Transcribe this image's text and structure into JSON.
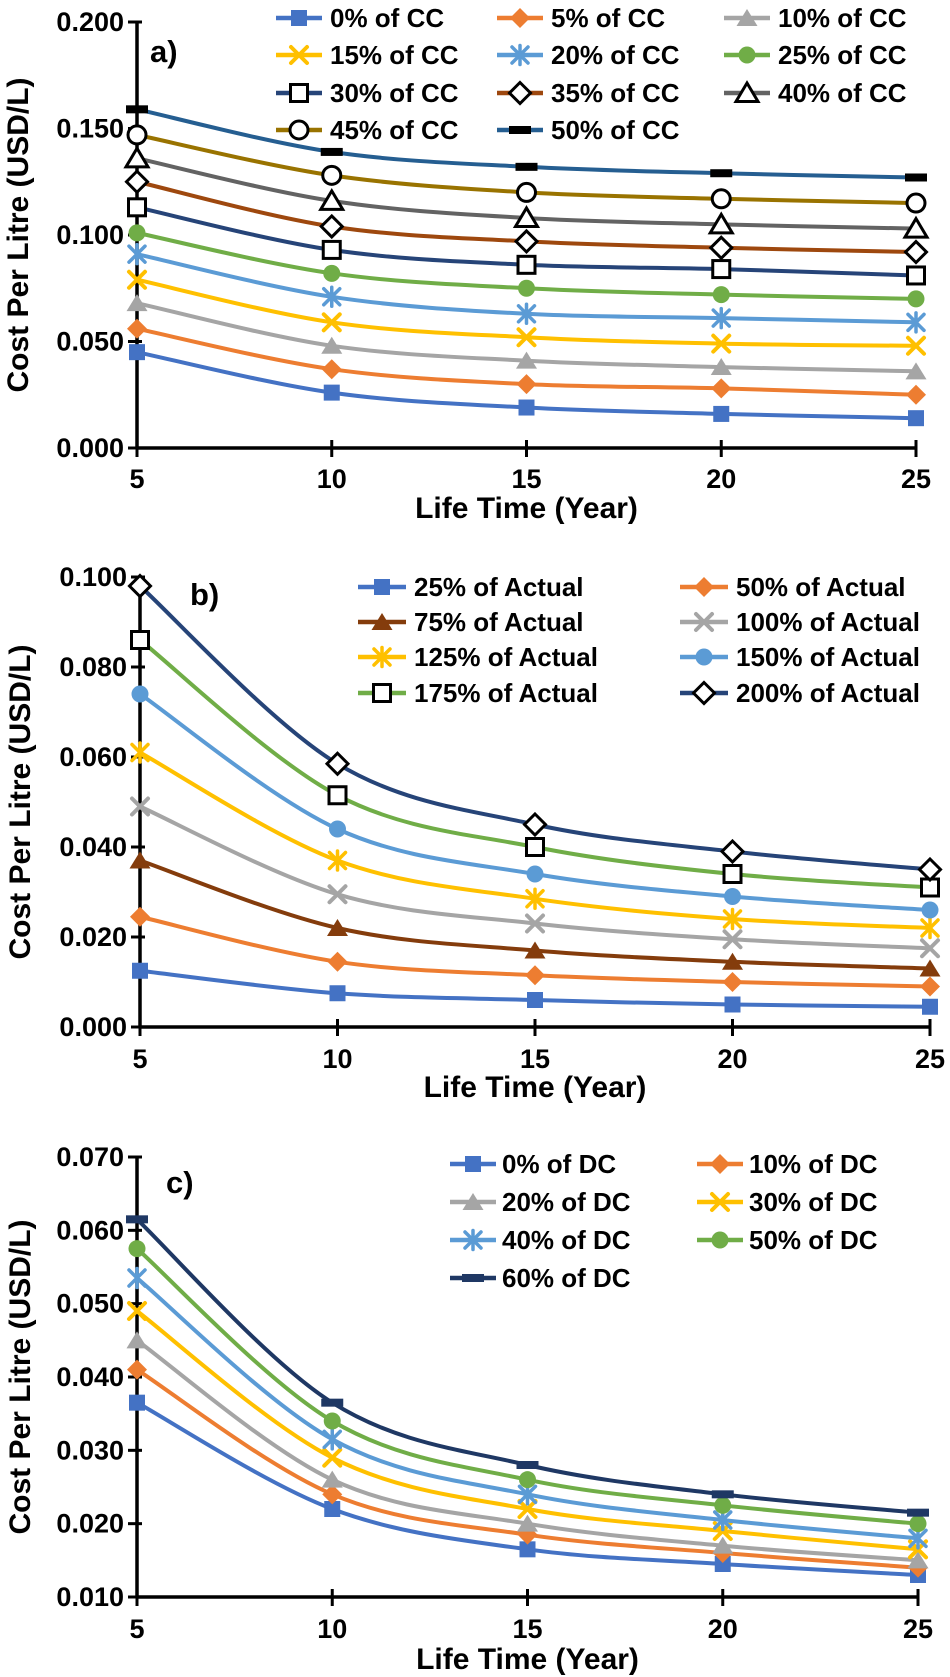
{
  "figure": {
    "x_axis_title": "Life Time (Year)",
    "y_axis_title": "Cost Per Litre (USD/L)",
    "panel_labels": [
      "a)",
      "b)",
      "c)"
    ],
    "colors": {
      "blue": "#4472C4",
      "orange": "#ED7D31",
      "gray": "#A5A5A5",
      "gold": "#FFC000",
      "lightblue": "#5B9BD5",
      "green": "#70AD47",
      "navy": "#264478",
      "rust": "#9E480E",
      "darkgray": "#636363",
      "olive": "#997300",
      "steel": "#255E91",
      "brown": "#843C0C",
      "darknavy": "#1F3864",
      "black": "#000000"
    }
  },
  "chart_data": [
    {
      "type": "line",
      "panel_label": "a)",
      "xlabel": "Life Time (Year)",
      "ylabel": "Cost Per Litre (USD/L)",
      "x": [
        5,
        10,
        15,
        20,
        25
      ],
      "xtick_labels": [
        "5",
        "10",
        "15",
        "20",
        "25"
      ],
      "ylim": [
        0.0,
        0.2
      ],
      "ytick_labels": [
        "0.000",
        "0.050",
        "0.100",
        "0.150",
        "0.200"
      ],
      "grid": false,
      "smooth": true,
      "legend_position": "top",
      "legend_columns": 3,
      "series": [
        {
          "name": "0% of CC",
          "color": "#4472C4",
          "marker": "square",
          "values": [
            0.045,
            0.026,
            0.019,
            0.016,
            0.014
          ]
        },
        {
          "name": "5% of CC",
          "color": "#ED7D31",
          "marker": "diamond",
          "values": [
            0.056,
            0.037,
            0.03,
            0.028,
            0.025
          ]
        },
        {
          "name": "10% of CC",
          "color": "#A5A5A5",
          "marker": "triangle",
          "values": [
            0.068,
            0.048,
            0.041,
            0.038,
            0.036
          ]
        },
        {
          "name": "15% of CC",
          "color": "#FFC000",
          "marker": "x",
          "values": [
            0.079,
            0.059,
            0.052,
            0.049,
            0.048
          ]
        },
        {
          "name": "20% of CC",
          "color": "#5B9BD5",
          "marker": "asterisk",
          "values": [
            0.091,
            0.071,
            0.063,
            0.061,
            0.059
          ]
        },
        {
          "name": "25% of CC",
          "color": "#70AD47",
          "marker": "circle",
          "values": [
            0.101,
            0.082,
            0.075,
            0.072,
            0.07
          ]
        },
        {
          "name": "30% of CC",
          "color": "#264478",
          "marker": "open-square",
          "values": [
            0.113,
            0.093,
            0.086,
            0.084,
            0.081
          ]
        },
        {
          "name": "35% of CC",
          "color": "#9E480E",
          "marker": "open-diamond",
          "values": [
            0.125,
            0.104,
            0.097,
            0.094,
            0.092
          ]
        },
        {
          "name": "40% of CC",
          "color": "#636363",
          "marker": "open-triangle",
          "values": [
            0.136,
            0.116,
            0.108,
            0.105,
            0.103
          ]
        },
        {
          "name": "45% of CC",
          "color": "#997300",
          "marker": "open-circle",
          "values": [
            0.147,
            0.128,
            0.12,
            0.117,
            0.115
          ]
        },
        {
          "name": "50% of CC",
          "color": "#255E91",
          "marker": "dash",
          "marker_color": "#000000",
          "values": [
            0.159,
            0.139,
            0.132,
            0.129,
            0.127
          ]
        }
      ]
    },
    {
      "type": "line",
      "panel_label": "b)",
      "xlabel": "Life Time (Year)",
      "ylabel": "Cost Per Litre (USD/L)",
      "x": [
        5,
        10,
        15,
        20,
        25
      ],
      "xtick_labels": [
        "5",
        "10",
        "15",
        "20",
        "25"
      ],
      "ylim": [
        0.0,
        0.1
      ],
      "ytick_labels": [
        "0.000",
        "0.020",
        "0.040",
        "0.060",
        "0.080",
        "0.100"
      ],
      "grid": false,
      "smooth": true,
      "legend_position": "top-right",
      "legend_columns": 2,
      "series": [
        {
          "name": "25% of Actual",
          "color": "#4472C4",
          "marker": "square",
          "values": [
            0.0125,
            0.0075,
            0.006,
            0.005,
            0.0045
          ]
        },
        {
          "name": "50% of Actual",
          "color": "#ED7D31",
          "marker": "diamond",
          "values": [
            0.0245,
            0.0145,
            0.0115,
            0.01,
            0.009
          ]
        },
        {
          "name": "75% of Actual",
          "color": "#843C0C",
          "marker": "triangle",
          "values": [
            0.037,
            0.022,
            0.017,
            0.0145,
            0.013
          ]
        },
        {
          "name": "100% of Actual",
          "color": "#A5A5A5",
          "marker": "x",
          "values": [
            0.049,
            0.0295,
            0.023,
            0.0195,
            0.0175
          ]
        },
        {
          "name": "125% of Actual",
          "color": "#FFC000",
          "marker": "asterisk",
          "values": [
            0.061,
            0.037,
            0.0285,
            0.024,
            0.022
          ]
        },
        {
          "name": "150% of Actual",
          "color": "#5B9BD5",
          "marker": "circle",
          "values": [
            0.074,
            0.044,
            0.034,
            0.029,
            0.026
          ]
        },
        {
          "name": "175% of Actual",
          "color": "#70AD47",
          "marker": "open-square",
          "values": [
            0.086,
            0.0515,
            0.04,
            0.034,
            0.031
          ]
        },
        {
          "name": "200% of Actual",
          "color": "#264478",
          "marker": "open-diamond",
          "values": [
            0.098,
            0.0585,
            0.045,
            0.039,
            0.035
          ]
        }
      ]
    },
    {
      "type": "line",
      "panel_label": "c)",
      "xlabel": "Life Time (Year)",
      "ylabel": "Cost Per Litre (USD/L)",
      "x": [
        5,
        10,
        15,
        20,
        25
      ],
      "xtick_labels": [
        "5",
        "10",
        "15",
        "20",
        "25"
      ],
      "ylim": [
        0.01,
        0.07
      ],
      "ytick_labels": [
        "0.010",
        "0.020",
        "0.030",
        "0.040",
        "0.050",
        "0.060",
        "0.070"
      ],
      "grid": false,
      "smooth": true,
      "legend_position": "top-right",
      "legend_columns": 2,
      "series": [
        {
          "name": "0% of DC",
          "color": "#4472C4",
          "marker": "square",
          "values": [
            0.0365,
            0.022,
            0.0165,
            0.0145,
            0.013
          ]
        },
        {
          "name": "10% of DC",
          "color": "#ED7D31",
          "marker": "diamond",
          "values": [
            0.041,
            0.024,
            0.0185,
            0.016,
            0.014
          ]
        },
        {
          "name": "20% of DC",
          "color": "#A5A5A5",
          "marker": "triangle",
          "values": [
            0.045,
            0.026,
            0.02,
            0.017,
            0.015
          ]
        },
        {
          "name": "30% of DC",
          "color": "#FFC000",
          "marker": "x",
          "values": [
            0.049,
            0.029,
            0.022,
            0.019,
            0.0165
          ]
        },
        {
          "name": "40% of DC",
          "color": "#5B9BD5",
          "marker": "asterisk",
          "values": [
            0.0535,
            0.0315,
            0.024,
            0.0205,
            0.018
          ]
        },
        {
          "name": "50% of DC",
          "color": "#70AD47",
          "marker": "circle",
          "values": [
            0.0575,
            0.034,
            0.026,
            0.0225,
            0.02
          ]
        },
        {
          "name": "60% of DC",
          "color": "#1F3864",
          "marker": "dash",
          "marker_color": "#1F3864",
          "values": [
            0.0615,
            0.0365,
            0.028,
            0.024,
            0.0215
          ]
        }
      ]
    }
  ]
}
